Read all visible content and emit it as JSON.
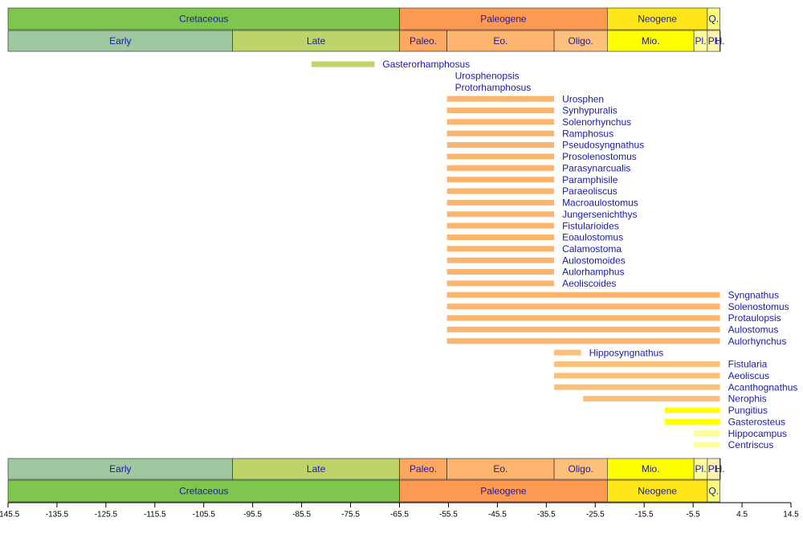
{
  "chart_data": {
    "type": "timeline",
    "xlim": [
      -145.5,
      14.5
    ],
    "xticks": [
      -145.5,
      -135.5,
      -125.5,
      -115.5,
      -105.5,
      -95.5,
      -85.5,
      -75.5,
      -65.5,
      -55.5,
      -45.5,
      -35.5,
      -25.5,
      -15.5,
      -5.5,
      4.5,
      14.5
    ],
    "periods": [
      {
        "name": "Cretaceous",
        "start": -145.5,
        "end": -65.5,
        "color": "#7fc64e"
      },
      {
        "name": "Paleogene",
        "start": -65.5,
        "end": -23.03,
        "color": "#fd9a52"
      },
      {
        "name": "Neogene",
        "start": -23.03,
        "end": -2.588,
        "color": "#ffe619"
      },
      {
        "name": "Q.",
        "start": -2.588,
        "end": 0,
        "color": "#f9f97f"
      }
    ],
    "epochs": [
      {
        "name": "Early",
        "start": -145.5,
        "end": -99.6,
        "color": "#9fc7a0"
      },
      {
        "name": "Late",
        "start": -99.6,
        "end": -65.5,
        "color": "#bdd46a"
      },
      {
        "name": "Paleo.",
        "start": -65.5,
        "end": -55.8,
        "color": "#fda75f"
      },
      {
        "name": "Eo.",
        "start": -55.8,
        "end": -33.9,
        "color": "#fdb46c"
      },
      {
        "name": "Oligo.",
        "start": -33.9,
        "end": -23.03,
        "color": "#fdc07a"
      },
      {
        "name": "Mio.",
        "start": -23.03,
        "end": -5.332,
        "color": "#ffff00"
      },
      {
        "name": "Pl.",
        "start": -5.332,
        "end": -2.588,
        "color": "#ffff99"
      },
      {
        "name": "Pl.",
        "start": -2.588,
        "end": -0.0117,
        "color": "#fff2ae"
      },
      {
        "name": "H.",
        "start": -0.0117,
        "end": 0,
        "color": "#fef2e0"
      }
    ],
    "taxa": [
      {
        "name": "Gasterorhamphosus",
        "start": -83.5,
        "end": -70.6,
        "color": "#bdd46a"
      },
      {
        "name": "Urosphenopsis",
        "start": -55.8,
        "end": -55.8,
        "color": "#fdb46c"
      },
      {
        "name": "Protorhamphosus",
        "start": -55.8,
        "end": -55.8,
        "color": "#fdb46c"
      },
      {
        "name": "Urosphen",
        "start": -55.8,
        "end": -33.9,
        "color": "#fdb46c"
      },
      {
        "name": "Synhypuralis",
        "start": -55.8,
        "end": -33.9,
        "color": "#fdb46c"
      },
      {
        "name": "Solenorhynchus",
        "start": -55.8,
        "end": -33.9,
        "color": "#fdb46c"
      },
      {
        "name": "Ramphosus",
        "start": -55.8,
        "end": -33.9,
        "color": "#fdb46c"
      },
      {
        "name": "Pseudosyngnathus",
        "start": -55.8,
        "end": -33.9,
        "color": "#fdb46c"
      },
      {
        "name": "Prosolenostomus",
        "start": -55.8,
        "end": -33.9,
        "color": "#fdb46c"
      },
      {
        "name": "Parasynarcualis",
        "start": -55.8,
        "end": -33.9,
        "color": "#fdb46c"
      },
      {
        "name": "Paramphisile",
        "start": -55.8,
        "end": -33.9,
        "color": "#fdb46c"
      },
      {
        "name": "Paraeoliscus",
        "start": -55.8,
        "end": -33.9,
        "color": "#fdb46c"
      },
      {
        "name": "Macroaulostomus",
        "start": -55.8,
        "end": -33.9,
        "color": "#fdb46c"
      },
      {
        "name": "Jungersenichthys",
        "start": -55.8,
        "end": -33.9,
        "color": "#fdb46c"
      },
      {
        "name": "Fistularioides",
        "start": -55.8,
        "end": -33.9,
        "color": "#fdb46c"
      },
      {
        "name": "Eoaulostomus",
        "start": -55.8,
        "end": -33.9,
        "color": "#fdb46c"
      },
      {
        "name": "Calamostoma",
        "start": -55.8,
        "end": -33.9,
        "color": "#fdb46c"
      },
      {
        "name": "Aulostomoides",
        "start": -55.8,
        "end": -33.9,
        "color": "#fdb46c"
      },
      {
        "name": "Aulorhamphus",
        "start": -55.8,
        "end": -33.9,
        "color": "#fdb46c"
      },
      {
        "name": "Aeoliscoides",
        "start": -55.8,
        "end": -33.9,
        "color": "#fdb46c"
      },
      {
        "name": "Syngnathus",
        "start": -55.8,
        "end": 0,
        "color": "#fdb46c"
      },
      {
        "name": "Solenostomus",
        "start": -55.8,
        "end": 0,
        "color": "#fdb46c"
      },
      {
        "name": "Protaulopsis",
        "start": -55.8,
        "end": 0,
        "color": "#fdb46c"
      },
      {
        "name": "Aulostomus",
        "start": -55.8,
        "end": 0,
        "color": "#fdb46c"
      },
      {
        "name": "Aulorhynchus",
        "start": -55.8,
        "end": 0,
        "color": "#fdb46c"
      },
      {
        "name": "Hipposyngnathus",
        "start": -33.9,
        "end": -28.4,
        "color": "#fdc07a"
      },
      {
        "name": "Fistularia",
        "start": -33.9,
        "end": 0,
        "color": "#fdc07a"
      },
      {
        "name": "Aeoliscus",
        "start": -33.9,
        "end": 0,
        "color": "#fdc07a"
      },
      {
        "name": "Acanthognathus",
        "start": -33.9,
        "end": 0,
        "color": "#fdc07a"
      },
      {
        "name": "Nerophis",
        "start": -28,
        "end": 0,
        "color": "#fdc07a"
      },
      {
        "name": "Pungitius",
        "start": -11.3,
        "end": 0,
        "color": "#ffff00"
      },
      {
        "name": "Gasterosteus",
        "start": -11.3,
        "end": 0,
        "color": "#ffff00"
      },
      {
        "name": "Hippocampus",
        "start": -5.3,
        "end": 0,
        "color": "#ffff99"
      },
      {
        "name": "Centriscus",
        "start": -5.3,
        "end": 0,
        "color": "#ffff99"
      }
    ]
  }
}
